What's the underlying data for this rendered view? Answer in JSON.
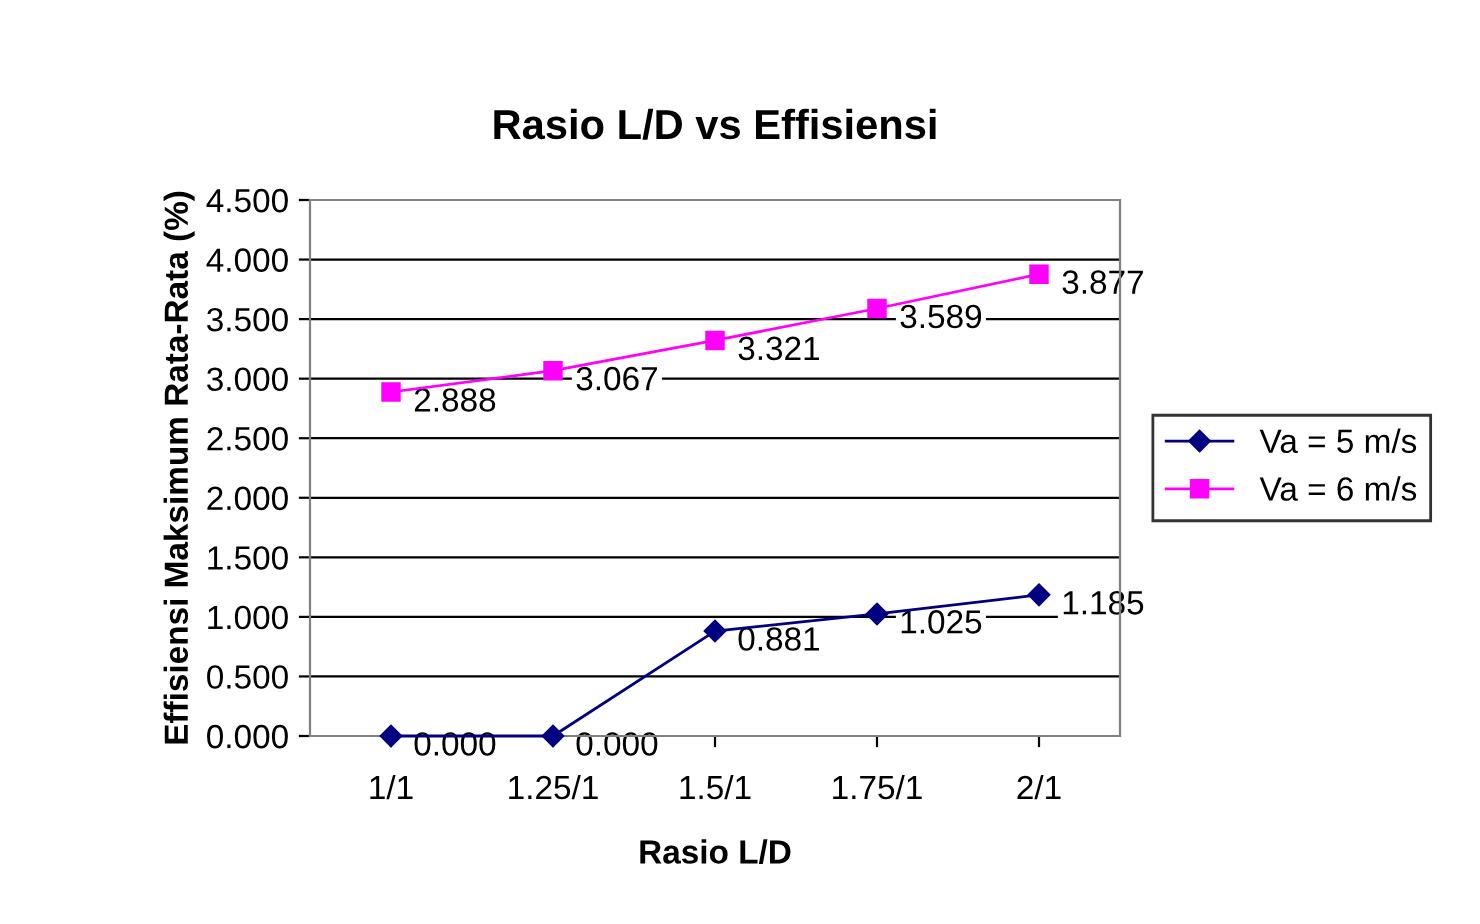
{
  "chart_data": {
    "type": "line",
    "title": "Rasio L/D vs Effisiensi",
    "xlabel": "Rasio L/D",
    "ylabel": "Effisiensi Maksimum Rata-Rata (%)",
    "categories": [
      "1/1",
      "1.25/1",
      "1.5/1",
      "1.75/1",
      "2/1"
    ],
    "series": [
      {
        "name": "Va = 5 m/s",
        "color": "#000080",
        "marker": "diamond",
        "values": [
          0.0,
          0.0,
          0.881,
          1.025,
          1.185
        ],
        "value_labels": [
          "0.000",
          "0.000",
          "0.881",
          "1.025",
          "1.185"
        ]
      },
      {
        "name": "Va = 6 m/s",
        "color": "#ff00ff",
        "marker": "square",
        "values": [
          2.888,
          3.067,
          3.321,
          3.589,
          3.877
        ],
        "value_labels": [
          "2.888",
          "3.067",
          "3.321",
          "3.589",
          "3.877"
        ]
      }
    ],
    "ylim": [
      0,
      4.5
    ],
    "yticks": [
      {
        "value": 0,
        "label": "0.000"
      },
      {
        "value": 0.5,
        "label": "0.500"
      },
      {
        "value": 1,
        "label": "1.000"
      },
      {
        "value": 1.5,
        "label": "1.500"
      },
      {
        "value": 2,
        "label": "2.000"
      },
      {
        "value": 2.5,
        "label": "2.500"
      },
      {
        "value": 3,
        "label": "3.000"
      },
      {
        "value": 3.5,
        "label": "3.500"
      },
      {
        "value": 4,
        "label": "4.000"
      },
      {
        "value": 4.5,
        "label": "4.500"
      }
    ],
    "grid": "y",
    "legend": "right",
    "line_style": "solid"
  }
}
